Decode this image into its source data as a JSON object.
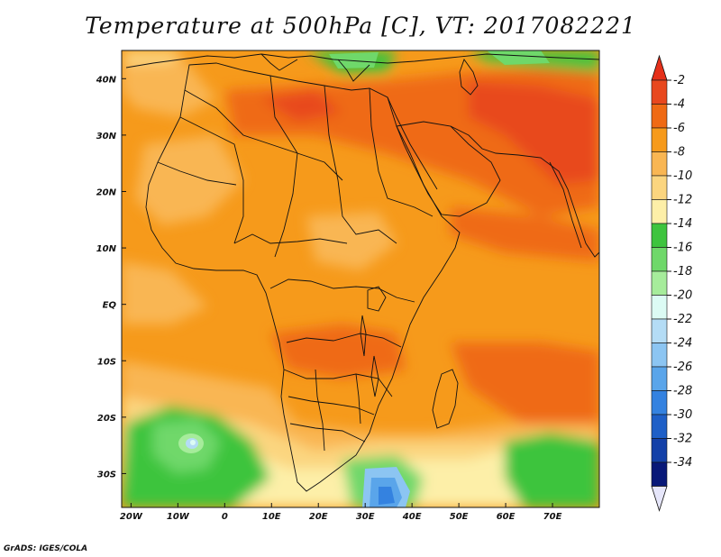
{
  "title": "Temperature at 500hPa [C], VT: 2017082221",
  "credit": "GrADS: IGES/COLA",
  "map": {
    "lon_range": [
      -22,
      80
    ],
    "lat_range": [
      -36,
      45
    ],
    "lon_ticks": [
      {
        "v": -20,
        "label": "20W"
      },
      {
        "v": -10,
        "label": "10W"
      },
      {
        "v": 0,
        "label": "0"
      },
      {
        "v": 10,
        "label": "10E"
      },
      {
        "v": 20,
        "label": "20E"
      },
      {
        "v": 30,
        "label": "30E"
      },
      {
        "v": 40,
        "label": "40E"
      },
      {
        "v": 50,
        "label": "50E"
      },
      {
        "v": 60,
        "label": "60E"
      },
      {
        "v": 70,
        "label": "70E"
      }
    ],
    "lat_ticks": [
      {
        "v": 40,
        "label": "40N"
      },
      {
        "v": 30,
        "label": "30N"
      },
      {
        "v": 20,
        "label": "20N"
      },
      {
        "v": 10,
        "label": "10N"
      },
      {
        "v": 0,
        "label": "EQ"
      },
      {
        "v": -10,
        "label": "10S"
      },
      {
        "v": -20,
        "label": "20S"
      },
      {
        "v": -30,
        "label": "30S"
      }
    ]
  },
  "colorbar": {
    "levels": [
      "-2",
      "-4",
      "-6",
      "-8",
      "-10",
      "-12",
      "-14",
      "-16",
      "-18",
      "-20",
      "-22",
      "-24",
      "-26",
      "-28",
      "-30",
      "-32",
      "-34"
    ],
    "colors": [
      "#e8481e",
      "#ef6a14",
      "#f69a1b",
      "#f9b653",
      "#fbd57f",
      "#fdefa8",
      "#3ec43e",
      "#6fd86a",
      "#a6ec9b",
      "#dcfbf4",
      "#b4dcf5",
      "#8cc5f2",
      "#5aa5ea",
      "#3482e0",
      "#1e5fc7",
      "#1340a8",
      "#081878"
    ],
    "top_color": "#e5301a",
    "bottom_color": "#e6e6fa"
  }
}
